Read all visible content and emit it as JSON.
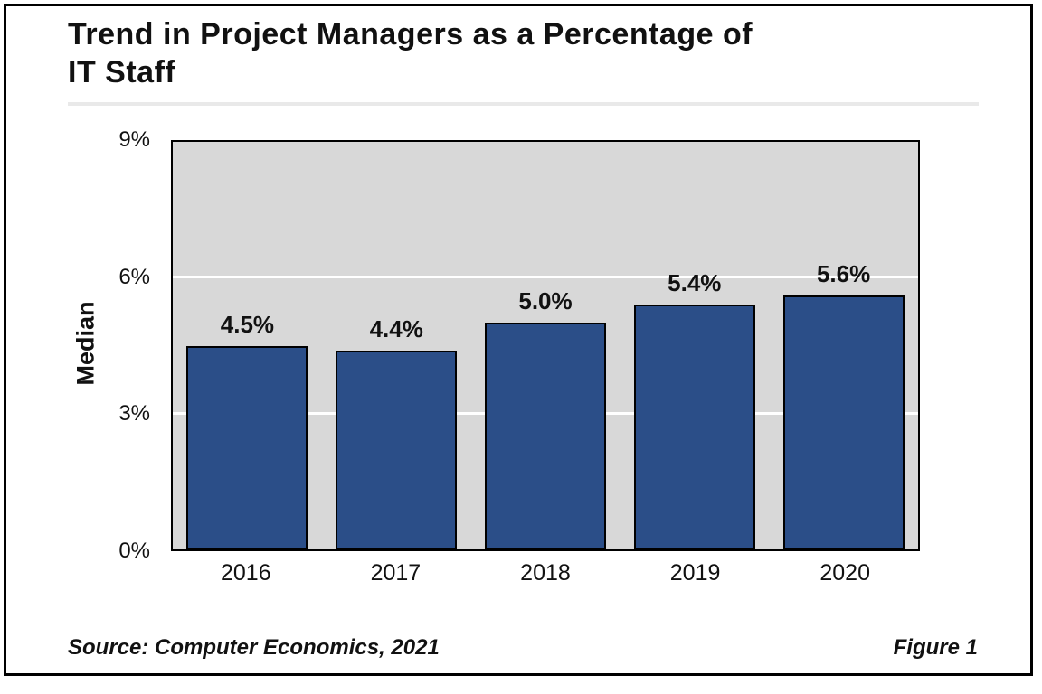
{
  "figure": {
    "title_line1": "Trend in Project Managers as a Percentage of",
    "title_line2": "IT Staff",
    "source": "Source: Computer Economics, 2021",
    "figure_label": "Figure 1"
  },
  "chart_data": {
    "type": "bar",
    "title": "Trend in Project Managers as a Percentage of IT Staff",
    "categories": [
      "2016",
      "2017",
      "2018",
      "2019",
      "2020"
    ],
    "values": [
      4.5,
      4.4,
      5.0,
      5.4,
      5.6
    ],
    "bar_labels": [
      "4.5%",
      "4.4%",
      "5.0%",
      "5.4%",
      "5.6%"
    ],
    "xlabel": "",
    "ylabel": "Median",
    "ylim": [
      0,
      9
    ],
    "yticks": [
      {
        "label": "0%",
        "value": 0
      },
      {
        "label": "3%",
        "value": 3
      },
      {
        "label": "6%",
        "value": 6
      },
      {
        "label": "9%",
        "value": 9
      }
    ],
    "gridline_values": [
      3,
      6
    ],
    "grid": "horizontal-white",
    "legend": "none",
    "colors": {
      "bar_fill": "#2B4E88",
      "bar_border": "#000000",
      "plot_bg": "#D8D8D8",
      "gridline": "#FFFFFF",
      "frame_border": "#000000",
      "divider": "#E9E9E9"
    }
  }
}
